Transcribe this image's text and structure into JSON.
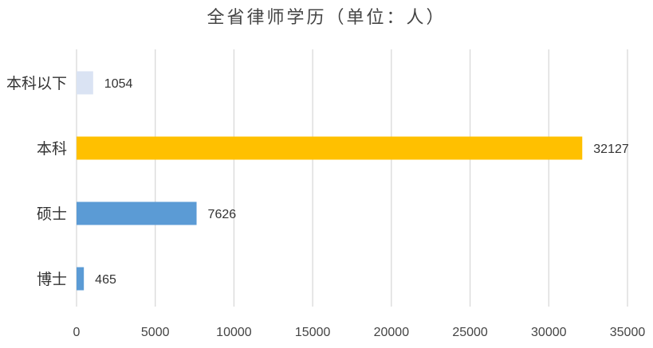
{
  "chart_data": {
    "type": "bar",
    "orientation": "horizontal",
    "title": "全省律师学历（单位：人）",
    "categories": [
      "本科以下",
      "本科",
      "硕士",
      "博士"
    ],
    "values": [
      1054,
      32127,
      7626,
      465
    ],
    "value_labels": [
      "1054",
      "32127",
      "7626",
      "465"
    ],
    "colors": [
      "#DAE3F3",
      "#FFC000",
      "#5B9BD5",
      "#5B9BD5"
    ],
    "xlim": [
      0,
      35000
    ],
    "x_ticks": [
      0,
      5000,
      10000,
      15000,
      20000,
      25000,
      30000,
      35000
    ],
    "x_tick_labels": [
      "0",
      "5000",
      "10000",
      "15000",
      "20000",
      "25000",
      "30000",
      "35000"
    ],
    "grid": true,
    "legend": "none"
  }
}
